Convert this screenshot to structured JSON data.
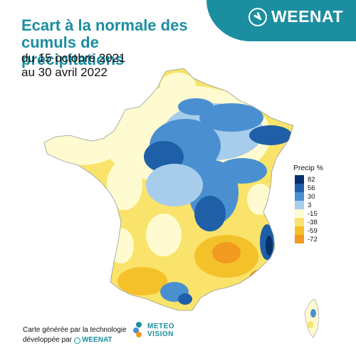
{
  "brand": {
    "name": "WEENAT",
    "accent": "#1b8ea0",
    "icon": "weenat-logo-icon"
  },
  "title": "Ecart à la normale des cumuls de précipitations",
  "subtitle": {
    "line1": "du 15 octobre 2021",
    "line2": "au 30 avril 2022"
  },
  "legend": {
    "title": "Precip %",
    "items": [
      {
        "label": "82",
        "color": "#08306b"
      },
      {
        "label": "56",
        "color": "#1f5fa8"
      },
      {
        "label": "30",
        "color": "#4a90d0"
      },
      {
        "label": "3",
        "color": "#a8cdec"
      },
      {
        "label": "-15",
        "color": "#fffbd0"
      },
      {
        "label": "-38",
        "color": "#f9e36a"
      },
      {
        "label": "-59",
        "color": "#f5c12a"
      },
      {
        "label": "-72",
        "color": "#f29a1f"
      }
    ]
  },
  "footer": {
    "line1": "Carte générée par la technologie",
    "line2": "développée par",
    "weenat_small": "WEENAT",
    "meteo_line1": "METEO",
    "meteo_line2": "VISION"
  }
}
